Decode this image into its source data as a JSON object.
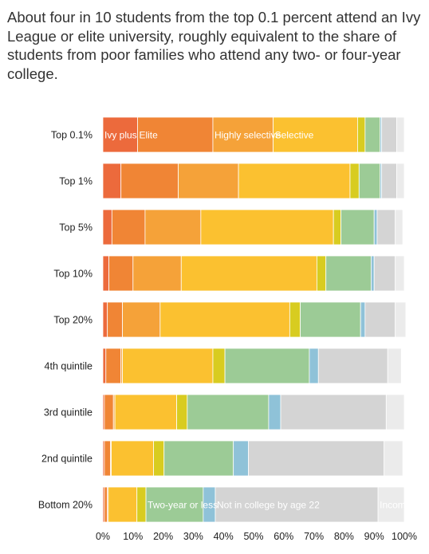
{
  "headline": "About four in 10 students from the top 0.1 percent attend an Ivy League or elite university, roughly equivalent to the share of students from poor families who attend any two- or four-year college.",
  "chart_data": {
    "type": "bar",
    "orientation": "horizontal",
    "stacked": true,
    "categories": [
      "Top 0.1%",
      "Top 1%",
      "Top 5%",
      "Top 10%",
      "Top 20%",
      "4th quintile",
      "3rd quintile",
      "2nd quintile",
      "Bottom 20%"
    ],
    "xlim": [
      0,
      100
    ],
    "x_ticks": [
      "0%",
      "10%",
      "20%",
      "30%",
      "40%",
      "50%",
      "60%",
      "70%",
      "80%",
      "90%",
      "100%"
    ],
    "grid": false,
    "series": [
      {
        "name": "Ivy plus",
        "color": "#ec6a3c",
        "values": [
          11.5,
          6,
          3,
          2,
          1.5,
          1,
          0.5,
          0.5,
          0.5
        ]
      },
      {
        "name": "Elite",
        "color": "#f08535",
        "values": [
          25,
          19,
          11,
          8,
          5,
          5,
          3,
          2,
          1
        ]
      },
      {
        "name": "Highly selective",
        "color": "#f5a239",
        "values": [
          20,
          20,
          18.5,
          16,
          12.5,
          0.5,
          0.5,
          0.3,
          0.3
        ]
      },
      {
        "name": "Selective",
        "color": "#fbc130",
        "values": [
          28,
          37,
          44,
          45,
          43,
          30,
          20.5,
          14,
          9.5
        ]
      },
      {
        "name": "",
        "color": "#d8cc20",
        "values": [
          2.5,
          3,
          2.5,
          3,
          3.5,
          4,
          3.5,
          3.5,
          3
        ]
      },
      {
        "name": "Two-year or less",
        "color": "#9ccb96",
        "values": [
          5,
          7,
          11,
          15,
          20,
          28,
          27,
          23,
          19
        ]
      },
      {
        "name": "",
        "color": "#8fc2d8",
        "values": [
          0.5,
          0.5,
          1,
          1,
          1.5,
          3,
          4,
          5,
          4
        ]
      },
      {
        "name": "Not in college by age 22",
        "color": "#d4d4d4",
        "values": [
          5,
          5,
          6,
          7,
          10,
          23,
          35,
          45,
          54
        ]
      },
      {
        "name": "Incomplete",
        "color": "#ebebeb",
        "values": [
          2.5,
          2.5,
          2.5,
          3,
          3.5,
          4.5,
          6,
          6.2,
          8.7
        ]
      }
    ],
    "inline_labels": [
      {
        "text": "Ivy plus",
        "row": 0,
        "series": 0
      },
      {
        "text": "Elite",
        "row": 0,
        "series": 1
      },
      {
        "text": "Highly selective",
        "row": 0,
        "series": 2
      },
      {
        "text": "Selective",
        "row": 0,
        "series": 3
      },
      {
        "text": "Two-year or less",
        "row": 8,
        "series": 5
      },
      {
        "text": "Not in college by age 22",
        "row": 8,
        "series": 7
      },
      {
        "text": "Incomplete",
        "row": 8,
        "series": 8
      }
    ]
  }
}
